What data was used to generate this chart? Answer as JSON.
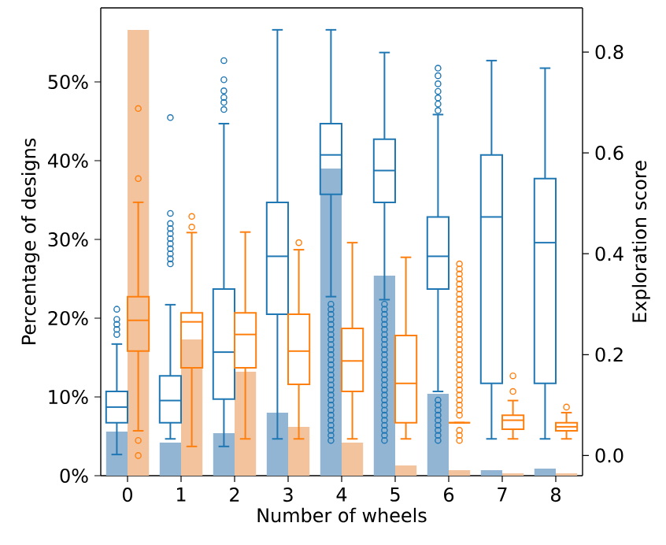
{
  "chart_data": {
    "type": "bar",
    "xlabel": "Number of wheels",
    "ylabel": "Percentage of designs",
    "y2label": "Exploration score",
    "categories": [
      "0",
      "1",
      "2",
      "3",
      "4",
      "5",
      "6",
      "7",
      "8"
    ],
    "ylim": [
      0,
      59.4
    ],
    "yticks": [
      {
        "value": 0,
        "label": "0%"
      },
      {
        "value": 10,
        "label": "10%"
      },
      {
        "value": 20,
        "label": "20%"
      },
      {
        "value": 30,
        "label": "30%"
      },
      {
        "value": 40,
        "label": "40%"
      },
      {
        "value": 50,
        "label": "50%"
      }
    ],
    "y2lim": [
      -0.04,
      0.8875
    ],
    "y2ticks": [
      {
        "value": 0,
        "label": "0.0"
      },
      {
        "value": 0.2,
        "label": "0.2"
      },
      {
        "value": 0.4,
        "label": "0.4"
      },
      {
        "value": 0.6,
        "label": "0.6"
      },
      {
        "value": 0.8,
        "label": "0.8"
      }
    ],
    "series": [
      {
        "color": "#92b5d3",
        "values": [
          5.6,
          4.2,
          5.4,
          8.0,
          39,
          25.4,
          10.4,
          0.7,
          0.9
        ]
      },
      {
        "color": "#f2c39c",
        "values": [
          56.6,
          17.3,
          13.2,
          6.2,
          4.2,
          1.3,
          0.7,
          0.3,
          0.3
        ]
      },
      {
        "type": "box",
        "axis": "y2",
        "color": "#1f77b4",
        "boxes": [
          {
            "low": 0.002,
            "q1": 0.065,
            "median": 0.096,
            "q3": 0.127,
            "high": 0.221,
            "outliers": [
              0.24,
              0.25,
              0.26,
              0.27,
              0.29
            ]
          },
          {
            "low": 0.033,
            "q1": 0.065,
            "median": 0.109,
            "q3": 0.158,
            "high": 0.299,
            "outliers": [
              0.38,
              0.39,
              0.4,
              0.41,
              0.42,
              0.43,
              0.44,
              0.45,
              0.46,
              0.48,
              0.67
            ]
          },
          {
            "low": 0.018,
            "q1": 0.112,
            "median": 0.205,
            "q3": 0.33,
            "high": 0.658,
            "outliers": [
              0.686,
              0.7,
              0.71,
              0.723,
              0.745,
              0.783
            ]
          },
          {
            "low": 0.033,
            "q1": 0.28,
            "median": 0.395,
            "q3": 0.502,
            "high": 0.844
          },
          {
            "low": 0.315,
            "q1": 0.518,
            "median": 0.596,
            "q3": 0.658,
            "high": 0.844,
            "outliers": [
              0.03,
              0.04,
              0.05,
              0.06,
              0.07,
              0.08,
              0.09,
              0.1,
              0.11,
              0.12,
              0.13,
              0.14,
              0.15,
              0.16,
              0.17,
              0.18,
              0.19,
              0.2,
              0.21,
              0.22,
              0.23,
              0.24,
              0.25,
              0.26,
              0.27,
              0.28,
              0.29,
              0.3
            ]
          },
          {
            "low": 0.309,
            "q1": 0.502,
            "median": 0.565,
            "q3": 0.627,
            "high": 0.799,
            "outliers": [
              0.03,
              0.04,
              0.05,
              0.06,
              0.07,
              0.08,
              0.09,
              0.1,
              0.11,
              0.12,
              0.13,
              0.14,
              0.15,
              0.16,
              0.17,
              0.18,
              0.19,
              0.2,
              0.21,
              0.22,
              0.23,
              0.24,
              0.25,
              0.26,
              0.27,
              0.28,
              0.29,
              0.3
            ]
          },
          {
            "low": 0.127,
            "q1": 0.33,
            "median": 0.395,
            "q3": 0.473,
            "high": 0.676,
            "outliers": [
              0.03,
              0.04,
              0.05,
              0.06,
              0.07,
              0.08,
              0.09,
              0.1,
              0.11,
              0.684,
              0.697,
              0.709,
              0.722,
              0.737,
              0.753,
              0.768
            ]
          },
          {
            "low": 0.033,
            "q1": 0.143,
            "median": 0.473,
            "q3": 0.596,
            "high": 0.783
          },
          {
            "low": 0.033,
            "q1": 0.143,
            "median": 0.422,
            "q3": 0.549,
            "high": 0.768
          }
        ]
      },
      {
        "type": "box",
        "axis": "y2",
        "color": "#ff7f0e",
        "boxes": [
          {
            "low": 0.049,
            "q1": 0.207,
            "median": 0.268,
            "q3": 0.315,
            "high": 0.502,
            "outliers": [
              0.0,
              0.03,
              0.549,
              0.688
            ]
          },
          {
            "low": 0.018,
            "q1": 0.174,
            "median": 0.265,
            "q3": 0.283,
            "high": 0.442,
            "outliers": [
              0.453,
              0.474
            ]
          },
          {
            "low": 0.033,
            "q1": 0.174,
            "median": 0.24,
            "q3": 0.283,
            "high": 0.443
          },
          {
            "low": 0.033,
            "q1": 0.141,
            "median": 0.207,
            "q3": 0.28,
            "high": 0.408,
            "outliers": [
              0.422
            ]
          },
          {
            "low": 0.033,
            "q1": 0.127,
            "median": 0.1875,
            "q3": 0.252,
            "high": 0.422
          },
          {
            "low": 0.033,
            "q1": 0.065,
            "median": 0.143,
            "q3": 0.238,
            "high": 0.393
          },
          {
            "low": 0.065,
            "q1": 0.065,
            "median": 0.065,
            "q3": 0.065,
            "high": 0.065,
            "outliers": [
              0.03,
              0.04,
              0.05,
              0.08,
              0.09,
              0.1,
              0.11,
              0.12,
              0.13,
              0.14,
              0.15,
              0.16,
              0.17,
              0.18,
              0.19,
              0.2,
              0.21,
              0.22,
              0.23,
              0.24,
              0.25,
              0.26,
              0.27,
              0.28,
              0.29,
              0.3,
              0.31,
              0.32,
              0.33,
              0.34,
              0.35,
              0.36,
              0.37,
              0.38
            ]
          },
          {
            "low": 0.033,
            "q1": 0.052,
            "median": 0.07,
            "q3": 0.08,
            "high": 0.109,
            "outliers": [
              0.127,
              0.158
            ]
          },
          {
            "low": 0.033,
            "q1": 0.049,
            "median": 0.057,
            "q3": 0.065,
            "high": 0.085,
            "outliers": [
              0.096
            ]
          }
        ]
      }
    ]
  }
}
